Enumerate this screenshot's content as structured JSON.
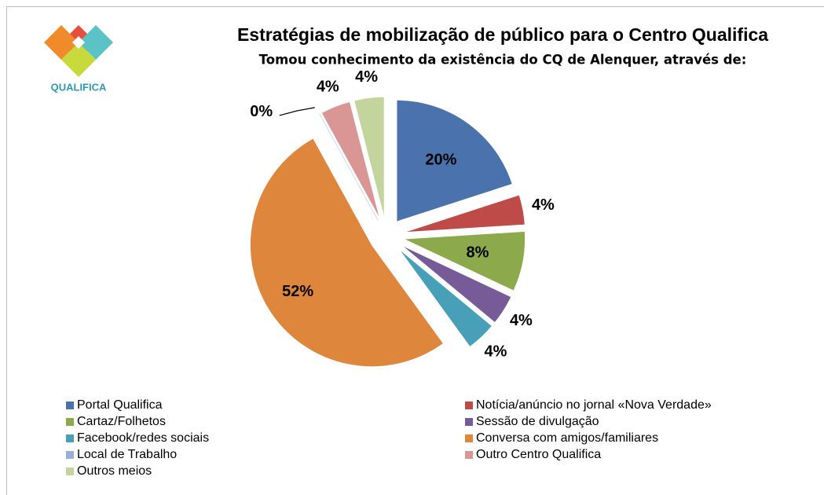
{
  "chart_data": {
    "type": "pie",
    "logo_text": "QUALIFICA",
    "title": "Estratégias de mobilização de público para o Centro Qualifica",
    "subtitle": "Tomou conhecimento da existência do CQ de Alenquer, através de:",
    "categories": [
      "Portal Qualifica",
      "Notícia/anúncio no jornal «Nova Verdade»",
      "Cartaz/Folhetos",
      "Sessão de divulgação",
      "Facebook/redes sociais",
      "Conversa com amigos/familiares",
      "Local de Trabalho",
      "Outro Centro Qualifica",
      "Outros meios"
    ],
    "values": [
      20,
      4,
      8,
      4,
      4,
      52,
      0,
      4,
      4
    ],
    "value_labels": [
      "20%",
      "4%",
      "8%",
      "4%",
      "4%",
      "52%",
      "0%",
      "4%",
      "4%"
    ],
    "colors": [
      "#4a72ad",
      "#be4b48",
      "#8caa4c",
      "#775a98",
      "#47a0b7",
      "#df863d",
      "#98afd9",
      "#d99695",
      "#c3d59d"
    ],
    "legend": "bottom"
  }
}
